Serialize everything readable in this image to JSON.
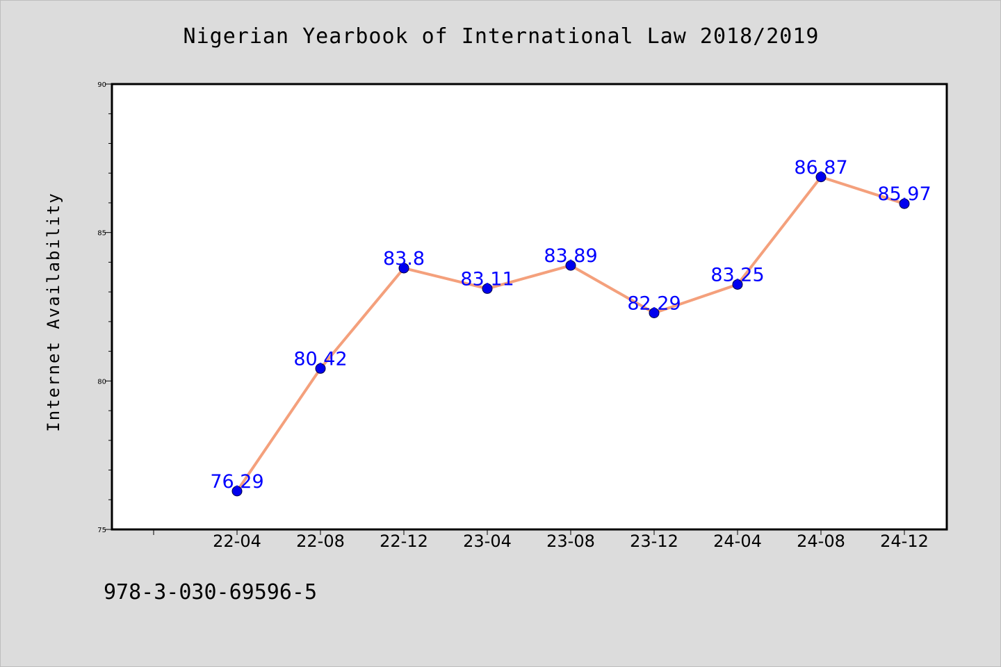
{
  "chart_data": {
    "type": "line",
    "title": "Nigerian Yearbook of International Law 2018/2019",
    "xlabel": "",
    "ylabel": "Internet Availability",
    "categories": [
      "22-04",
      "22-08",
      "22-12",
      "23-04",
      "23-08",
      "23-12",
      "24-04",
      "24-08",
      "24-12"
    ],
    "values": [
      76.29,
      80.42,
      83.8,
      83.11,
      83.89,
      82.29,
      83.25,
      86.87,
      85.97
    ],
    "data_labels": [
      "76.29",
      "80.42",
      "83.8",
      "83.11",
      "83.89",
      "82.29",
      "83.25",
      "86.87",
      "85.97"
    ],
    "ylim": [
      75,
      90
    ],
    "yticks": [
      75,
      80,
      85,
      90
    ],
    "grid": false,
    "legend": "none",
    "line_color": "#f4a07c",
    "marker_color": "#0000ee",
    "label_color": "#0000ff"
  },
  "footer": {
    "code": "978-3-030-69596-5"
  }
}
